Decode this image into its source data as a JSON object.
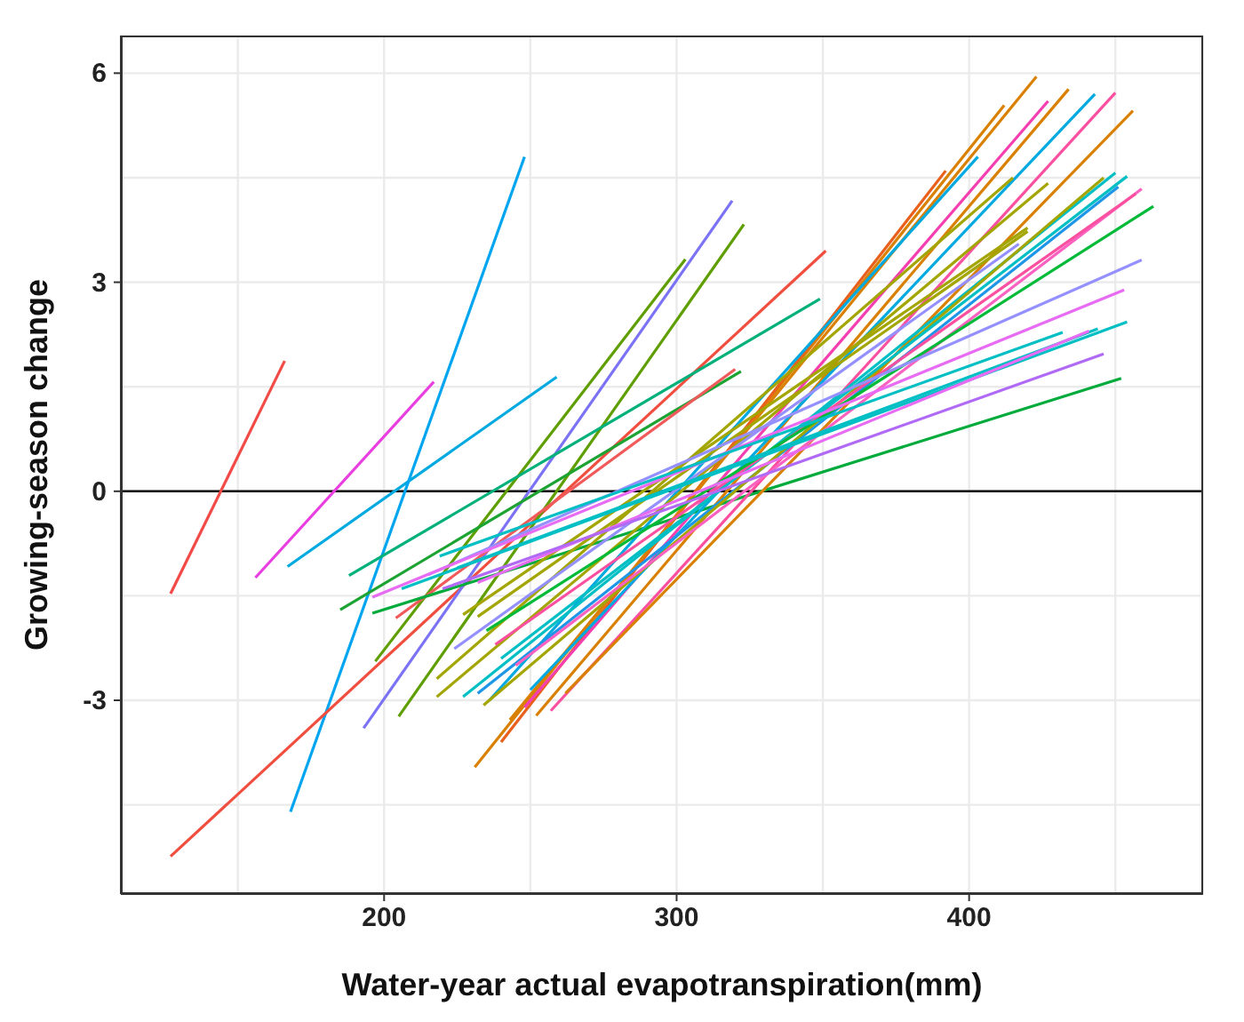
{
  "chart_data": {
    "type": "line",
    "xlabel": "Water-year actual evapotranspiration(mm)",
    "ylabel": "Growing-season change",
    "xlim": [
      110,
      480
    ],
    "ylim": [
      -5.78,
      6.54
    ],
    "xticks": [
      {
        "value": 150,
        "label": null
      },
      200,
      {
        "value": 250,
        "label": null
      },
      300,
      {
        "value": 350,
        "label": null
      },
      400,
      {
        "value": 450,
        "label": null
      }
    ],
    "yticks": [
      {
        "value": -4.5,
        "label": null
      },
      -3,
      {
        "value": -1.5,
        "label": null
      },
      0,
      {
        "value": 1.5,
        "label": null
      },
      3,
      {
        "value": 4.5,
        "label": null
      },
      6
    ],
    "grid": true,
    "marker": "none",
    "line_style": "solid",
    "ref_lines": [
      {
        "axis": "y",
        "value": 0,
        "color": "#000000"
      }
    ],
    "series": [
      {
        "color": "#f24b47",
        "x": [
          127,
          166
        ],
        "values": [
          -1.47,
          1.87
        ]
      },
      {
        "color": "#e93fe0",
        "x": [
          156,
          217
        ],
        "values": [
          -1.24,
          1.57
        ]
      },
      {
        "color": "#00a9e0",
        "x": [
          167,
          259
        ],
        "values": [
          -1.08,
          1.64
        ]
      },
      {
        "color": "#00a5ef",
        "x": [
          168,
          248
        ],
        "values": [
          -4.6,
          4.8
        ]
      },
      {
        "color": "#f04e3e",
        "x": [
          127,
          351
        ],
        "values": [
          -5.24,
          3.45
        ]
      },
      {
        "color": "#7b72f5",
        "x": [
          193,
          319
        ],
        "values": [
          -3.4,
          4.17
        ]
      },
      {
        "color": "#5f9e00",
        "x": [
          197,
          303
        ],
        "values": [
          -2.44,
          3.33
        ]
      },
      {
        "color": "#5f9e00",
        "x": [
          205,
          323
        ],
        "values": [
          -3.23,
          3.83
        ]
      },
      {
        "color": "#00b07a",
        "x": [
          188,
          349
        ],
        "values": [
          -1.21,
          2.76
        ]
      },
      {
        "color": "#1ca332",
        "x": [
          185,
          322
        ],
        "values": [
          -1.7,
          1.72
        ]
      },
      {
        "color": "#f15a5a",
        "x": [
          204,
          320
        ],
        "values": [
          -1.82,
          1.75
        ]
      },
      {
        "color": "#00ab3c",
        "x": [
          196,
          452
        ],
        "values": [
          -1.75,
          1.62
        ]
      },
      {
        "color": "#d98000",
        "x": [
          231,
          412
        ],
        "values": [
          -3.96,
          5.54
        ]
      },
      {
        "color": "#e8601c",
        "x": [
          240,
          392
        ],
        "values": [
          -3.6,
          4.6
        ]
      },
      {
        "color": "#d98000",
        "x": [
          243,
          423
        ],
        "values": [
          -3.28,
          5.95
        ]
      },
      {
        "color": "#d98000",
        "x": [
          252,
          434
        ],
        "values": [
          -3.22,
          5.77
        ]
      },
      {
        "color": "#00a9e0",
        "x": [
          236,
          403
        ],
        "values": [
          -3.0,
          4.8
        ]
      },
      {
        "color": "#fb4fa0",
        "x": [
          257,
          450
        ],
        "values": [
          -3.15,
          5.72
        ]
      },
      {
        "color": "#f53fb0",
        "x": [
          248,
          427
        ],
        "values": [
          -3.1,
          5.6
        ]
      },
      {
        "color": "#00a9e0",
        "x": [
          250,
          443
        ],
        "values": [
          -2.85,
          5.7
        ]
      },
      {
        "color": "#d98000",
        "x": [
          262,
          456
        ],
        "values": [
          -2.9,
          5.46
        ]
      },
      {
        "color": "#a3a500",
        "x": [
          218,
          415
        ],
        "values": [
          -2.69,
          4.5
        ]
      },
      {
        "color": "#a3a500",
        "x": [
          218,
          427
        ],
        "values": [
          -2.95,
          4.42
        ]
      },
      {
        "color": "#00bfc4",
        "x": [
          227,
          450
        ],
        "values": [
          -2.95,
          4.57
        ]
      },
      {
        "color": "#1e96e8",
        "x": [
          232,
          451
        ],
        "values": [
          -2.9,
          4.37
        ]
      },
      {
        "color": "#a3a500",
        "x": [
          234,
          446
        ],
        "values": [
          -3.07,
          4.5
        ]
      },
      {
        "color": "#00bfc4",
        "x": [
          240,
          454
        ],
        "values": [
          -2.4,
          4.52
        ]
      },
      {
        "color": "#fb61c0",
        "x": [
          245,
          459
        ],
        "values": [
          -2.5,
          4.34
        ]
      },
      {
        "color": "#fb4fa0",
        "x": [
          238,
          457
        ],
        "values": [
          -2.2,
          4.27
        ]
      },
      {
        "color": "#00ba38",
        "x": [
          235,
          463
        ],
        "values": [
          -2.0,
          4.09
        ]
      },
      {
        "color": "#a3a500",
        "x": [
          227,
          420
        ],
        "values": [
          -1.77,
          3.78
        ]
      },
      {
        "color": "#9590ff",
        "x": [
          224,
          417
        ],
        "values": [
          -2.26,
          3.55
        ]
      },
      {
        "color": "#a3a500",
        "x": [
          232,
          420
        ],
        "values": [
          -1.8,
          3.73
        ]
      },
      {
        "color": "#9590ff",
        "x": [
          215,
          459
        ],
        "values": [
          -1.2,
          3.32
        ]
      },
      {
        "color": "#e76bf3",
        "x": [
          196,
          453
        ],
        "values": [
          -1.52,
          2.89
        ]
      },
      {
        "color": "#00bfc4",
        "x": [
          206,
          454
        ],
        "values": [
          -1.4,
          2.43
        ]
      },
      {
        "color": "#00bfc4",
        "x": [
          219,
          432
        ],
        "values": [
          -0.93,
          2.28
        ]
      },
      {
        "color": "#00bfc4",
        "x": [
          225,
          444
        ],
        "values": [
          -1.1,
          2.33
        ]
      },
      {
        "color": "#e76bf3",
        "x": [
          232,
          441
        ],
        "values": [
          -1.31,
          2.3
        ]
      },
      {
        "color": "#b06af5",
        "x": [
          220,
          446
        ],
        "values": [
          -1.4,
          1.97
        ]
      }
    ]
  }
}
